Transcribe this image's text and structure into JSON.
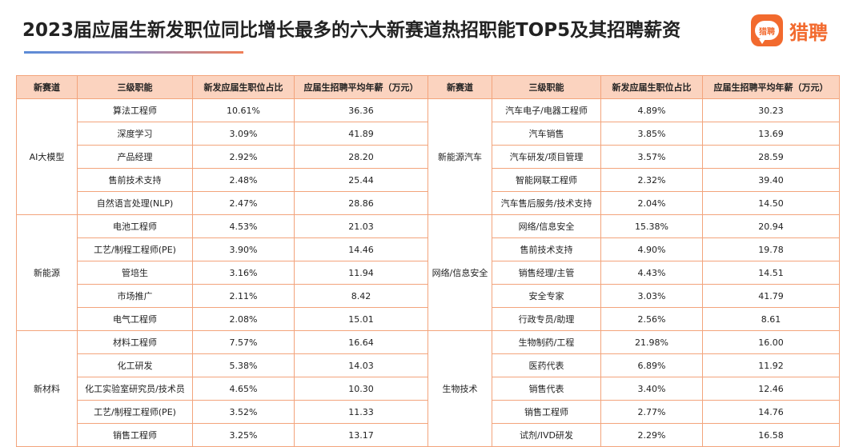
{
  "title": "2023届应届生新发职位同比增长最多的六大新赛道热招职能TOP5及其招聘薪资",
  "logo": {
    "badge": "猎聘",
    "text": "猎聘"
  },
  "colors": {
    "accent": "#f26a2e",
    "header_bg": "#fbd3bf",
    "border": "#f3a47c"
  },
  "headers": [
    "新赛道",
    "三级职能",
    "新发应届生职位占比",
    "应届生招聘平均年薪（万元）",
    "新赛道",
    "三级职能",
    "新发应届生职位占比",
    "应届生招聘平均年薪（万元）"
  ],
  "left_groups": [
    {
      "name": "AI大模型",
      "rows": [
        {
          "role": "算法工程师",
          "share": "10.61%",
          "salary": "36.36"
        },
        {
          "role": "深度学习",
          "share": "3.09%",
          "salary": "41.89"
        },
        {
          "role": "产品经理",
          "share": "2.92%",
          "salary": "28.20"
        },
        {
          "role": "售前技术支持",
          "share": "2.48%",
          "salary": "25.44"
        },
        {
          "role": "自然语言处理(NLP)",
          "share": "2.47%",
          "salary": "28.86"
        }
      ]
    },
    {
      "name": "新能源",
      "rows": [
        {
          "role": "电池工程师",
          "share": "4.53%",
          "salary": "21.03"
        },
        {
          "role": "工艺/制程工程师(PE)",
          "share": "3.90%",
          "salary": "14.46"
        },
        {
          "role": "管培生",
          "share": "3.16%",
          "salary": "11.94"
        },
        {
          "role": "市场推广",
          "share": "2.11%",
          "salary": "8.42"
        },
        {
          "role": "电气工程师",
          "share": "2.08%",
          "salary": "15.01"
        }
      ]
    },
    {
      "name": "新材料",
      "rows": [
        {
          "role": "材料工程师",
          "share": "7.57%",
          "salary": "16.64"
        },
        {
          "role": "化工研发",
          "share": "5.38%",
          "salary": "14.03"
        },
        {
          "role": "化工实验室研究员/技术员",
          "share": "4.65%",
          "salary": "10.30"
        },
        {
          "role": "工艺/制程工程师(PE)",
          "share": "3.52%",
          "salary": "11.33"
        },
        {
          "role": "销售工程师",
          "share": "3.25%",
          "salary": "13.17"
        }
      ]
    }
  ],
  "right_groups": [
    {
      "name": "新能源汽车",
      "rows": [
        {
          "role": "汽车电子/电器工程师",
          "share": "4.89%",
          "salary": "30.23"
        },
        {
          "role": "汽车销售",
          "share": "3.85%",
          "salary": "13.69"
        },
        {
          "role": "汽车研发/项目管理",
          "share": "3.57%",
          "salary": "28.59"
        },
        {
          "role": "智能网联工程师",
          "share": "2.32%",
          "salary": "39.40"
        },
        {
          "role": "汽车售后服务/技术支持",
          "share": "2.04%",
          "salary": "14.50"
        }
      ]
    },
    {
      "name": "网络/信息安全",
      "rows": [
        {
          "role": "网络/信息安全",
          "share": "15.38%",
          "salary": "20.94"
        },
        {
          "role": "售前技术支持",
          "share": "4.90%",
          "salary": "19.78"
        },
        {
          "role": "销售经理/主管",
          "share": "4.43%",
          "salary": "14.51"
        },
        {
          "role": "安全专家",
          "share": "3.03%",
          "salary": "41.79"
        },
        {
          "role": "行政专员/助理",
          "share": "2.56%",
          "salary": "8.61"
        }
      ]
    },
    {
      "name": "生物技术",
      "rows": [
        {
          "role": "生物制药/工程",
          "share": "21.98%",
          "salary": "16.00"
        },
        {
          "role": "医药代表",
          "share": "6.89%",
          "salary": "11.92"
        },
        {
          "role": "销售代表",
          "share": "3.40%",
          "salary": "12.46"
        },
        {
          "role": "销售工程师",
          "share": "2.77%",
          "salary": "14.76"
        },
        {
          "role": "试剂/IVD研发",
          "share": "2.29%",
          "salary": "16.58"
        }
      ]
    }
  ]
}
